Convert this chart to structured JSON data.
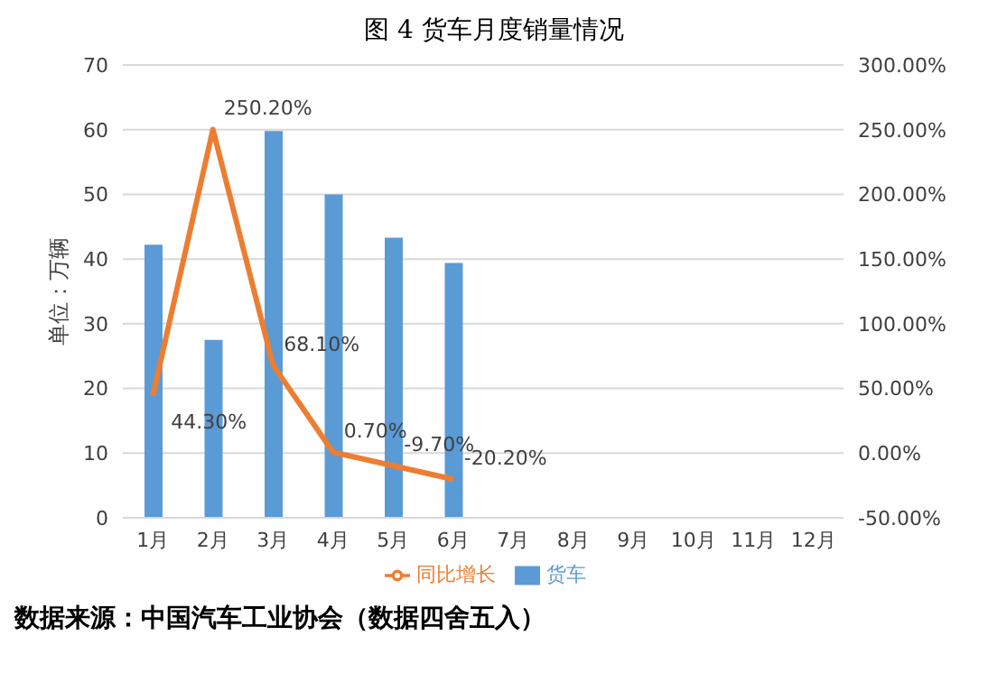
{
  "chart_data": {
    "type": "bar",
    "title": "图 4 货车月度销量情况",
    "ylabel": "单位：万辆",
    "categories": [
      "1月",
      "2月",
      "3月",
      "4月",
      "5月",
      "6月",
      "7月",
      "8月",
      "9月",
      "10月",
      "11月",
      "12月"
    ],
    "series": [
      {
        "name": "货车",
        "color": "#5b9bd5",
        "values": [
          42.2,
          27.5,
          59.8,
          50.0,
          43.3,
          39.4,
          null,
          null,
          null,
          null,
          null,
          null
        ]
      },
      {
        "name": "同比增长",
        "type": "line",
        "axis": "y2",
        "color": "#ed7d31",
        "values": [
          44.3,
          250.2,
          68.1,
          0.7,
          -9.7,
          -20.2,
          null,
          null,
          null,
          null,
          null,
          null
        ],
        "value_labels": [
          "44.30%",
          "250.20%",
          "68.10%",
          "0.70%",
          "-9.70%",
          "-20.20%",
          null,
          null,
          null,
          null,
          null,
          null
        ]
      }
    ],
    "ylim": [
      0,
      70
    ],
    "yticks": [
      0,
      10,
      20,
      30,
      40,
      50,
      60,
      70
    ],
    "y2lim": [
      -50,
      300
    ],
    "y2ticks": [
      {
        "value": -50,
        "label": "-50.00%"
      },
      {
        "value": 0,
        "label": "0.00%"
      },
      {
        "value": 50,
        "label": "50.00%"
      },
      {
        "value": 100,
        "label": "100.00%"
      },
      {
        "value": 150,
        "label": "150.00%"
      },
      {
        "value": 200,
        "label": "200.00%"
      },
      {
        "value": 250,
        "label": "250.00%"
      },
      {
        "value": 300,
        "label": "300.00%"
      }
    ],
    "grid": "y",
    "legend": "bottom",
    "marker": "none",
    "line_style": "solid",
    "annotations": [
      "数据来源：中国汽车工业协会（数据四舍五入）"
    ]
  }
}
